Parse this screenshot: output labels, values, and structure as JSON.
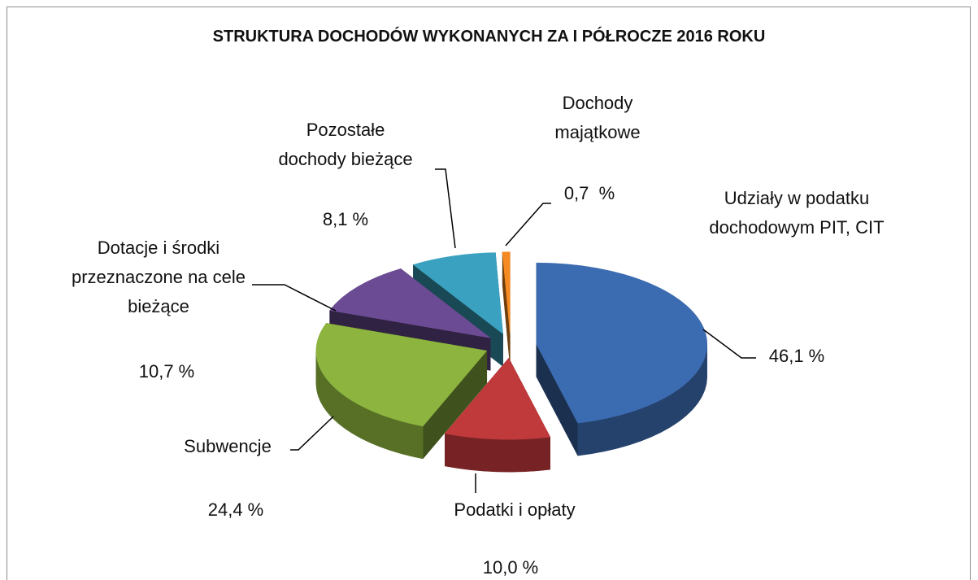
{
  "chart_data": {
    "type": "pie3d",
    "title": "STRUKTURA DOCHODÓW WYKONANYCH ZA I PÓŁROCZE 2016 ROKU",
    "categories": [
      "Udziały w podatku dochodowym PIT, CIT",
      "Podatki i opłaty",
      "Subwencje",
      "Dotacje i środki przeznaczone na cele bieżące",
      "Pozostałe dochody bieżące",
      "Dochody majątkowe"
    ],
    "values": [
      46.1,
      10.0,
      24.4,
      10.7,
      8.1,
      0.7
    ],
    "value_labels": [
      "46,1 %",
      "10,0 %",
      "24,4 %",
      "10,7 %",
      "8,1 %",
      "0,7  %"
    ],
    "colors": [
      "#3b6bb0",
      "#c0393b",
      "#8db43e",
      "#6b4b93",
      "#3aa2c0",
      "#f58a22"
    ]
  }
}
